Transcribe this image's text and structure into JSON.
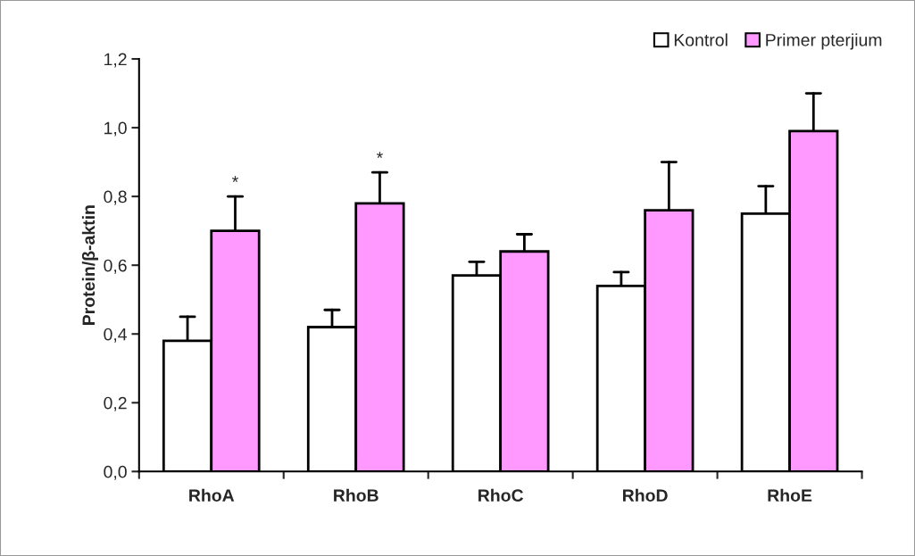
{
  "chart_data": {
    "type": "bar",
    "ylabel": "Protein/β-aktin",
    "categories": [
      "RhoA",
      "RhoB",
      "RhoC",
      "RhoD",
      "RhoE"
    ],
    "series": [
      {
        "name": "Kontrol",
        "color": "#ffffff",
        "values": [
          0.38,
          0.42,
          0.57,
          0.54,
          0.75
        ],
        "errors": [
          [
            0.38,
            0.45
          ],
          [
            0.42,
            0.47
          ],
          [
            0.57,
            0.61
          ],
          [
            0.54,
            0.58
          ],
          [
            0.75,
            0.83
          ]
        ]
      },
      {
        "name": "Primer pterjium",
        "color": "#ff99ff",
        "values": [
          0.7,
          0.78,
          0.64,
          0.76,
          0.99
        ],
        "errors": [
          [
            0.7,
            0.8
          ],
          [
            0.78,
            0.87
          ],
          [
            0.64,
            0.69
          ],
          [
            0.76,
            0.9
          ],
          [
            0.99,
            1.1
          ]
        ]
      }
    ],
    "ylim": [
      0,
      1.2
    ],
    "yticks": [
      {
        "value": 0,
        "label": "0,0"
      },
      {
        "value": 0.2,
        "label": "0,2"
      },
      {
        "value": 0.4,
        "label": "0,4"
      },
      {
        "value": 0.6,
        "label": "0,6"
      },
      {
        "value": 0.8,
        "label": "0,8"
      },
      {
        "value": 1.0,
        "label": "1,0"
      },
      {
        "value": 1.2,
        "label": "1,2"
      }
    ],
    "annotations": [
      "*",
      "*"
    ],
    "legend": "top right",
    "grid": false
  }
}
